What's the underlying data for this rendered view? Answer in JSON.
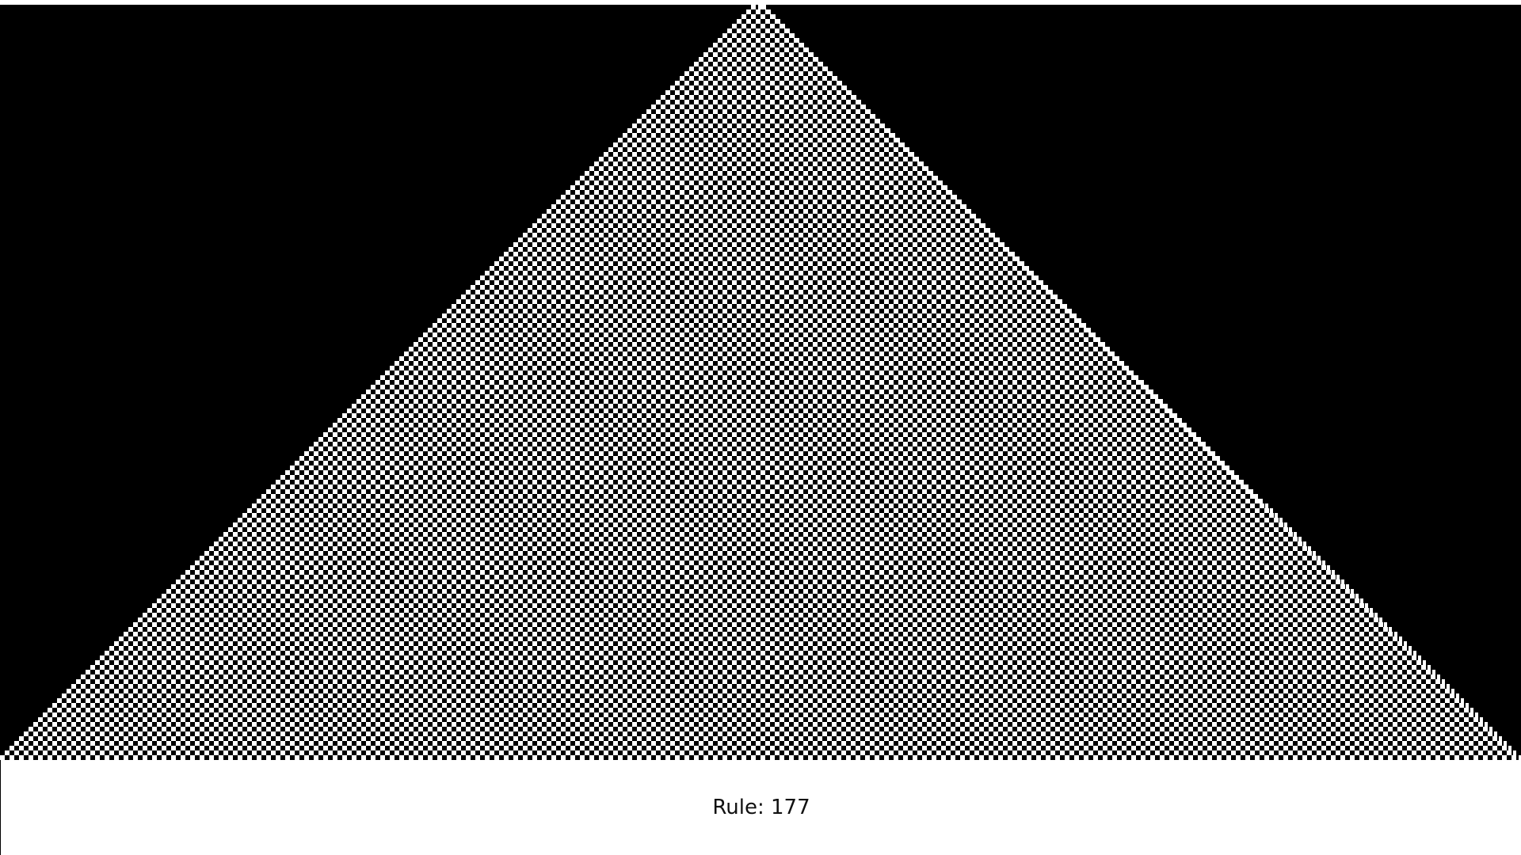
{
  "automaton": {
    "rule": 177,
    "initial_state": "single-cell-top-center",
    "colors": {
      "live": "#000000",
      "dead": "#ffffff",
      "background": "#000000"
    }
  },
  "footer": {
    "rule_text": "Rule: 177"
  }
}
